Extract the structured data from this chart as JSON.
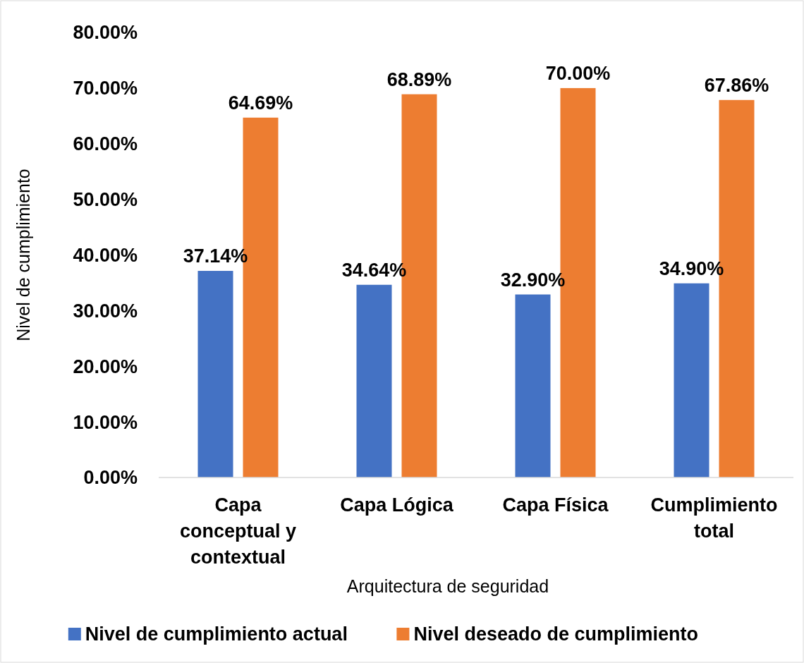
{
  "chart_data": {
    "type": "bar",
    "xlabel": "Arquitectura de seguridad",
    "ylabel": "Nivel de cumplimiento",
    "categories": [
      "Capa conceptual y contextual",
      "Capa Lógica",
      "Capa Física",
      "Cumplimiento total"
    ],
    "series": [
      {
        "name": "Nivel de cumplimiento actual",
        "color": "#4472c4",
        "values": [
          37.14,
          34.64,
          32.9,
          34.9
        ],
        "value_labels": [
          "37.14%",
          "34.64%",
          "32.90%",
          "34.90%"
        ]
      },
      {
        "name": "Nivel deseado de cumplimiento",
        "color": "#ed7d31",
        "values": [
          64.69,
          68.89,
          70,
          67.86
        ],
        "value_labels": [
          "64.69%",
          "68.89%",
          "70.00%",
          "67.86%"
        ]
      }
    ],
    "ylim": [
      0,
      80
    ],
    "yticks": [
      {
        "value": 0,
        "label": "0.00%"
      },
      {
        "value": 10,
        "label": "10.00%"
      },
      {
        "value": 20,
        "label": "20.00%"
      },
      {
        "value": 30,
        "label": "30.00%"
      },
      {
        "value": 40,
        "label": "40.00%"
      },
      {
        "value": 50,
        "label": "50.00%"
      },
      {
        "value": 60,
        "label": "60.00%"
      },
      {
        "value": 70,
        "label": "70.00%"
      },
      {
        "value": 80,
        "label": "80.00%"
      }
    ],
    "grid": false,
    "legend": "bottom"
  }
}
